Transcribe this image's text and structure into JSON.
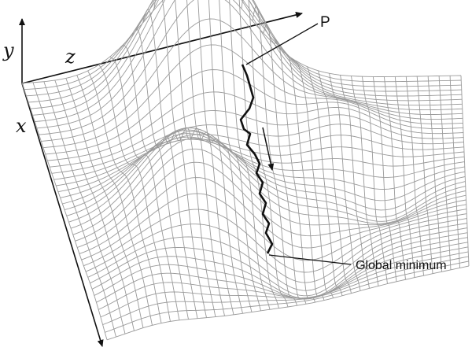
{
  "axes": {
    "y_label": "y",
    "z_label": "z",
    "x_label": "x"
  },
  "callouts": {
    "start_point": "P",
    "minimum": "Global minimum"
  },
  "colors": {
    "mesh": "#9a9a9a",
    "path": "#111111",
    "axes": "#111111",
    "background": "#ffffff"
  },
  "icons": {
    "descent_direction": "arrow-down-icon"
  }
}
